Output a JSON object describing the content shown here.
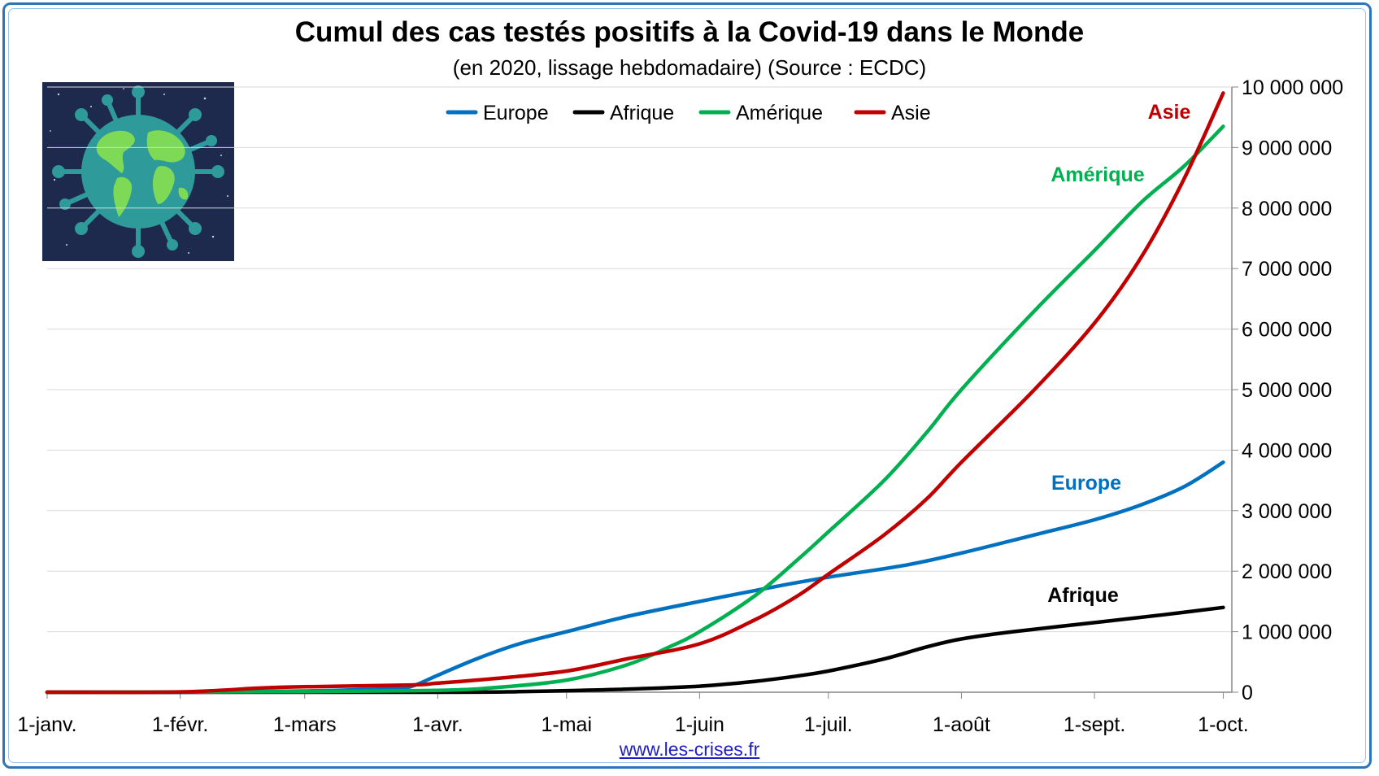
{
  "title": "Cumul des cas testés positifs à la Covid-19 dans le Monde",
  "subtitle": "(en 2020, lissage hebdomadaire) (Source : ECDC)",
  "source_link": "www.les-crises.fr",
  "logo_icon": "globe-virus-icon",
  "chart_data": {
    "type": "line",
    "title": "Cumul des cas testés positifs à la Covid-19 dans le Monde",
    "subtitle": "(en 2020, lissage hebdomadaire) (Source : ECDC)",
    "xlabel": "",
    "ylabel": "",
    "x_ticks": [
      {
        "label": "1-janv.",
        "day": 0
      },
      {
        "label": "1-févr.",
        "day": 31
      },
      {
        "label": "1-mars",
        "day": 60
      },
      {
        "label": "1-avr.",
        "day": 91
      },
      {
        "label": "1-mai",
        "day": 121
      },
      {
        "label": "1-juin",
        "day": 152
      },
      {
        "label": "1-juil.",
        "day": 182
      },
      {
        "label": "1-août",
        "day": 213
      },
      {
        "label": "1-sept.",
        "day": 244
      },
      {
        "label": "1-oct.",
        "day": 274
      }
    ],
    "xlim": [
      0,
      276
    ],
    "ylim": [
      0,
      10000000
    ],
    "y_ticks": [
      {
        "value": 0,
        "label": "0"
      },
      {
        "value": 1000000,
        "label": "1 000 000"
      },
      {
        "value": 2000000,
        "label": "2 000 000"
      },
      {
        "value": 3000000,
        "label": "3 000 000"
      },
      {
        "value": 4000000,
        "label": "4 000 000"
      },
      {
        "value": 5000000,
        "label": "5 000 000"
      },
      {
        "value": 6000000,
        "label": "6 000 000"
      },
      {
        "value": 7000000,
        "label": "7 000 000"
      },
      {
        "value": 8000000,
        "label": "8 000 000"
      },
      {
        "value": 9000000,
        "label": "9 000 000"
      },
      {
        "value": 10000000,
        "label": "10 000 000"
      }
    ],
    "y_axis_side": "right",
    "grid": "horizontal",
    "legend": "top-center",
    "series": [
      {
        "name": "Europe",
        "color": "#0070c0",
        "end_label": "Europe",
        "points": [
          [
            0,
            0
          ],
          [
            31,
            0
          ],
          [
            60,
            20000
          ],
          [
            80,
            60000
          ],
          [
            85,
            100000
          ],
          [
            91,
            280000
          ],
          [
            100,
            550000
          ],
          [
            110,
            800000
          ],
          [
            121,
            1000000
          ],
          [
            135,
            1250000
          ],
          [
            152,
            1500000
          ],
          [
            170,
            1750000
          ],
          [
            182,
            1900000
          ],
          [
            200,
            2100000
          ],
          [
            213,
            2300000
          ],
          [
            230,
            2600000
          ],
          [
            244,
            2850000
          ],
          [
            255,
            3100000
          ],
          [
            265,
            3400000
          ],
          [
            274,
            3800000
          ]
        ]
      },
      {
        "name": "Afrique",
        "color": "#000000",
        "end_label": "Afrique",
        "points": [
          [
            0,
            0
          ],
          [
            91,
            0
          ],
          [
            110,
            10000
          ],
          [
            121,
            25000
          ],
          [
            135,
            50000
          ],
          [
            152,
            100000
          ],
          [
            165,
            180000
          ],
          [
            175,
            270000
          ],
          [
            182,
            350000
          ],
          [
            195,
            550000
          ],
          [
            205,
            750000
          ],
          [
            213,
            880000
          ],
          [
            225,
            1000000
          ],
          [
            244,
            1150000
          ],
          [
            260,
            1280000
          ],
          [
            274,
            1400000
          ]
        ]
      },
      {
        "name": "Amérique",
        "color": "#00b050",
        "end_label": "Amérique",
        "points": [
          [
            0,
            0
          ],
          [
            60,
            10000
          ],
          [
            91,
            30000
          ],
          [
            105,
            80000
          ],
          [
            121,
            200000
          ],
          [
            135,
            450000
          ],
          [
            145,
            750000
          ],
          [
            152,
            1000000
          ],
          [
            165,
            1600000
          ],
          [
            175,
            2200000
          ],
          [
            182,
            2650000
          ],
          [
            195,
            3500000
          ],
          [
            205,
            4300000
          ],
          [
            213,
            5000000
          ],
          [
            230,
            6300000
          ],
          [
            244,
            7300000
          ],
          [
            255,
            8100000
          ],
          [
            265,
            8700000
          ],
          [
            274,
            9350000
          ]
        ]
      },
      {
        "name": "Asie",
        "color": "#c00000",
        "end_label": "Asie",
        "points": [
          [
            0,
            0
          ],
          [
            31,
            5000
          ],
          [
            50,
            70000
          ],
          [
            60,
            90000
          ],
          [
            85,
            120000
          ],
          [
            91,
            150000
          ],
          [
            105,
            230000
          ],
          [
            121,
            350000
          ],
          [
            135,
            550000
          ],
          [
            152,
            800000
          ],
          [
            165,
            1200000
          ],
          [
            175,
            1600000
          ],
          [
            182,
            1950000
          ],
          [
            195,
            2600000
          ],
          [
            205,
            3200000
          ],
          [
            213,
            3800000
          ],
          [
            230,
            5000000
          ],
          [
            244,
            6100000
          ],
          [
            255,
            7200000
          ],
          [
            265,
            8500000
          ],
          [
            274,
            9900000
          ]
        ]
      }
    ]
  }
}
